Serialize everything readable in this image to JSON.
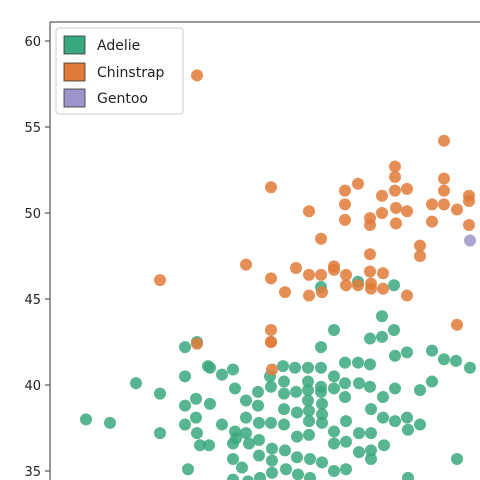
{
  "chart_data": {
    "type": "scatter",
    "title": "",
    "xlabel": "",
    "ylabel": "",
    "ylim": [
      34.2,
      61.2
    ],
    "yticks": [
      "35",
      "40",
      "45",
      "50",
      "55",
      "60"
    ],
    "grid": false,
    "legend_position": "top-left",
    "legend": [
      {
        "label": "Adelie",
        "color": "#3aa87f"
      },
      {
        "label": "Chinstrap",
        "color": "#e07b39"
      },
      {
        "label": "Gentoo",
        "color": "#9b95c9"
      }
    ],
    "series": [
      {
        "name": "Adelie",
        "color": "#3aa87f",
        "points": [
          [
            86,
            38
          ],
          [
            110,
            37.8
          ],
          [
            136,
            40.1
          ],
          [
            160,
            39.5
          ],
          [
            160,
            37.2
          ],
          [
            185,
            42.2
          ],
          [
            185,
            40.5
          ],
          [
            185,
            38.8
          ],
          [
            185,
            37.7
          ],
          [
            188,
            35.1
          ],
          [
            196,
            39.2
          ],
          [
            196,
            38.1
          ],
          [
            197,
            42.5
          ],
          [
            197,
            37.2
          ],
          [
            200,
            36.5
          ],
          [
            208,
            41.1
          ],
          [
            209,
            36.5
          ],
          [
            210,
            41
          ],
          [
            210,
            38.9
          ],
          [
            222,
            40.6
          ],
          [
            222,
            37.7
          ],
          [
            233,
            40.9
          ],
          [
            233,
            36.6
          ],
          [
            233,
            35.7
          ],
          [
            233,
            34.5
          ],
          [
            235,
            39.8
          ],
          [
            235,
            37.3
          ],
          [
            236,
            36.9
          ],
          [
            242,
            35.2
          ],
          [
            246,
            39.1
          ],
          [
            246,
            38.1
          ],
          [
            246,
            37.2
          ],
          [
            248,
            34.4
          ],
          [
            249,
            36.6
          ],
          [
            258,
            39.6
          ],
          [
            258,
            38.8
          ],
          [
            259,
            37.8
          ],
          [
            259,
            36.8
          ],
          [
            259,
            35.9
          ],
          [
            260,
            34.6
          ],
          [
            270,
            40.5
          ],
          [
            271,
            39.9
          ],
          [
            271,
            37.8
          ],
          [
            272,
            36.3
          ],
          [
            272,
            35.6
          ],
          [
            272,
            34.9
          ],
          [
            283,
            41.1
          ],
          [
            284,
            40.2
          ],
          [
            284,
            39.5
          ],
          [
            284,
            38.6
          ],
          [
            284,
            37.7
          ],
          [
            285,
            36.2
          ],
          [
            286,
            35.1
          ],
          [
            295,
            41
          ],
          [
            296,
            39.6
          ],
          [
            297,
            38.4
          ],
          [
            297,
            37
          ],
          [
            297,
            35.8
          ],
          [
            298,
            34.8
          ],
          [
            308,
            41
          ],
          [
            308,
            40.2
          ],
          [
            308,
            39.7
          ],
          [
            308,
            39.1
          ],
          [
            309,
            38.5
          ],
          [
            309,
            37.9
          ],
          [
            309,
            37.1
          ],
          [
            310,
            35.7
          ],
          [
            310,
            34.6
          ],
          [
            321,
            45.7
          ],
          [
            321,
            42.2
          ],
          [
            321,
            41
          ],
          [
            321,
            39.9
          ],
          [
            321,
            39.6
          ],
          [
            322,
            38.9
          ],
          [
            322,
            38.3
          ],
          [
            322,
            37.8
          ],
          [
            322,
            35.5
          ],
          [
            334,
            43.2
          ],
          [
            334,
            40.5
          ],
          [
            334,
            39.8
          ],
          [
            334,
            37.3
          ],
          [
            334,
            36.6
          ],
          [
            334,
            35
          ],
          [
            345,
            41.3
          ],
          [
            345,
            40.1
          ],
          [
            345,
            39.3
          ],
          [
            346,
            37.9
          ],
          [
            346,
            36.7
          ],
          [
            346,
            35.1
          ],
          [
            358,
            46
          ],
          [
            358,
            41.3
          ],
          [
            359,
            40.1
          ],
          [
            359,
            37.2
          ],
          [
            359,
            36.1
          ],
          [
            370,
            42.7
          ],
          [
            370,
            41.2
          ],
          [
            370,
            39.9
          ],
          [
            371,
            38.6
          ],
          [
            371,
            37.2
          ],
          [
            371,
            36.2
          ],
          [
            371,
            35.7
          ],
          [
            382,
            44
          ],
          [
            382,
            42.8
          ],
          [
            383,
            39.3
          ],
          [
            383,
            38.1
          ],
          [
            384,
            36.5
          ],
          [
            394,
            45.8
          ],
          [
            394,
            43.2
          ],
          [
            395,
            41.7
          ],
          [
            395,
            39.8
          ],
          [
            395,
            37.9
          ],
          [
            407,
            41.9
          ],
          [
            407,
            38.1
          ],
          [
            408,
            37.4
          ],
          [
            408,
            34.6
          ],
          [
            420,
            39.7
          ],
          [
            420,
            37.7
          ],
          [
            432,
            42
          ],
          [
            432,
            40.2
          ],
          [
            444,
            41.5
          ],
          [
            456,
            41.4
          ],
          [
            457,
            35.7
          ],
          [
            470,
            41
          ]
        ]
      },
      {
        "name": "Chinstrap",
        "color": "#e07b39",
        "points": [
          [
            160,
            46.1
          ],
          [
            197,
            58
          ],
          [
            197,
            42.4
          ],
          [
            246,
            47
          ],
          [
            271,
            51.5
          ],
          [
            271,
            46.2
          ],
          [
            271,
            43.2
          ],
          [
            271,
            42.5
          ],
          [
            271,
            42.5
          ],
          [
            272,
            40.9
          ],
          [
            285,
            45.4
          ],
          [
            296,
            46.8
          ],
          [
            309,
            50.1
          ],
          [
            309,
            46.4
          ],
          [
            309,
            45.2
          ],
          [
            321,
            48.5
          ],
          [
            321,
            46.4
          ],
          [
            322,
            45.4
          ],
          [
            334,
            46.9
          ],
          [
            334,
            46.7
          ],
          [
            345,
            51.3
          ],
          [
            345,
            50.5
          ],
          [
            345,
            49.6
          ],
          [
            346,
            46.4
          ],
          [
            346,
            45.8
          ],
          [
            358,
            51.7
          ],
          [
            358,
            45.8
          ],
          [
            370,
            49.7
          ],
          [
            370,
            49.3
          ],
          [
            370,
            47.6
          ],
          [
            370,
            46.6
          ],
          [
            371,
            45.9
          ],
          [
            371,
            45.6
          ],
          [
            382,
            51.0
          ],
          [
            382,
            50.0
          ],
          [
            383,
            46.5
          ],
          [
            383,
            45.6
          ],
          [
            395,
            52.7
          ],
          [
            395,
            52.1
          ],
          [
            395,
            51.3
          ],
          [
            396,
            50.3
          ],
          [
            396,
            49.4
          ],
          [
            407,
            51.4
          ],
          [
            407,
            50.1
          ],
          [
            407,
            45.2
          ],
          [
            420,
            48.1
          ],
          [
            420,
            47.5
          ],
          [
            432,
            50.5
          ],
          [
            432,
            49.5
          ],
          [
            444,
            54.2
          ],
          [
            444,
            52.0
          ],
          [
            444,
            51.3
          ],
          [
            444,
            50.5
          ],
          [
            457,
            50.2
          ],
          [
            457,
            43.5
          ],
          [
            469,
            51.0
          ],
          [
            469,
            50.7
          ],
          [
            469,
            49.3
          ]
        ]
      },
      {
        "name": "Gentoo",
        "color": "#9b95c9",
        "points": [
          [
            470,
            48.4
          ]
        ]
      }
    ]
  }
}
